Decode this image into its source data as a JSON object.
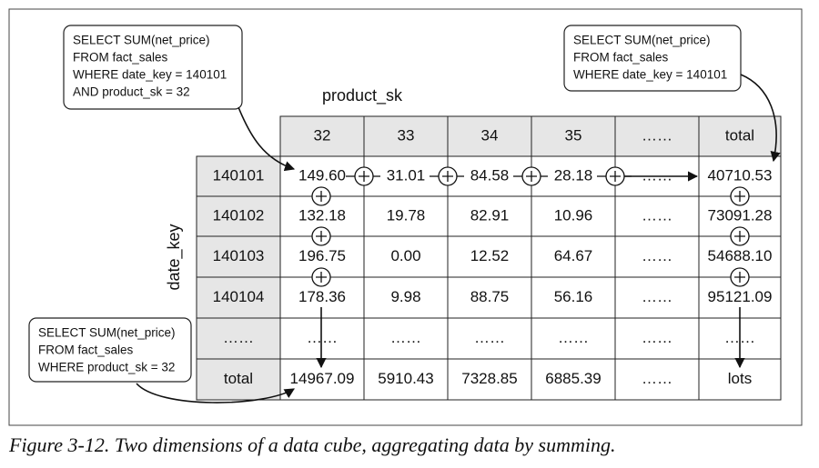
{
  "queries": [
    {
      "lines": [
        "SELECT SUM(net_price)",
        "FROM fact_sales",
        "WHERE date_key = 140101",
        "AND product_sk = 32"
      ]
    },
    {
      "lines": [
        "SELECT SUM(net_price)",
        "FROM fact_sales",
        "WHERE date_key = 140101"
      ]
    },
    {
      "lines": [
        "SELECT SUM(net_price)",
        "FROM fact_sales",
        "WHERE product_sk = 32"
      ]
    }
  ],
  "axes": {
    "x": "product_sk",
    "y": "date_key"
  },
  "table": {
    "header": [
      "32",
      "33",
      "34",
      "35",
      "……",
      "total"
    ],
    "rows": [
      [
        "140101",
        "149.60",
        "31.01",
        "84.58",
        "28.18",
        "……",
        "40710.53"
      ],
      [
        "140102",
        "132.18",
        "19.78",
        "82.91",
        "10.96",
        "……",
        "73091.28"
      ],
      [
        "140103",
        "196.75",
        "0.00",
        "12.52",
        "64.67",
        "……",
        "54688.10"
      ],
      [
        "140104",
        "178.36",
        "9.98",
        "88.75",
        "56.16",
        "……",
        "95121.09"
      ],
      [
        "……",
        "……",
        "……",
        "……",
        "……",
        "……",
        "……"
      ],
      [
        "total",
        "14967.09",
        "5910.43",
        "7328.85",
        "6885.39",
        "……",
        "lots"
      ]
    ]
  },
  "caption": "Figure 3-12. Two dimensions of a data cube, aggregating data by summing."
}
